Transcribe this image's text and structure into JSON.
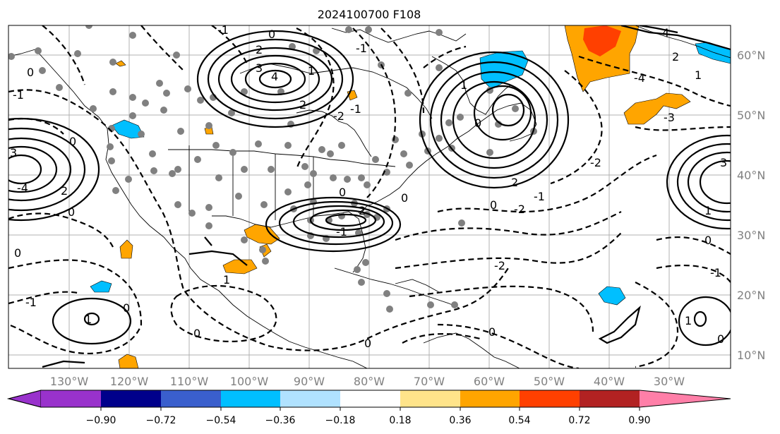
{
  "title": "2024100700 F108",
  "lon_labels": [
    "130°W",
    "120°W",
    "110°W",
    "100°W",
    "90°W",
    "80°W",
    "70°W",
    "60°W",
    "50°W",
    "40°W",
    "30°W"
  ],
  "lat_labels": [
    "60°N",
    "50°N",
    "40°N",
    "30°N",
    "20°N",
    "10°N"
  ],
  "colorbar": {
    "ticks": [
      "−0.90",
      "−0.72",
      "−0.54",
      "−0.36",
      "−0.18",
      "0.18",
      "0.36",
      "0.54",
      "0.72",
      "0.90"
    ],
    "colors": [
      "#9932cc",
      "#00008b",
      "#3a5fcd",
      "#00bfff",
      "#b0e2ff",
      "#ffffff",
      "#ffe48a",
      "#ffa500",
      "#ff4000",
      "#b22222",
      "#ff7fa8"
    ]
  },
  "contour_labels": [
    "0",
    "-1",
    "-2",
    "1",
    "2",
    "3",
    "4",
    "-3",
    "-4"
  ]
}
